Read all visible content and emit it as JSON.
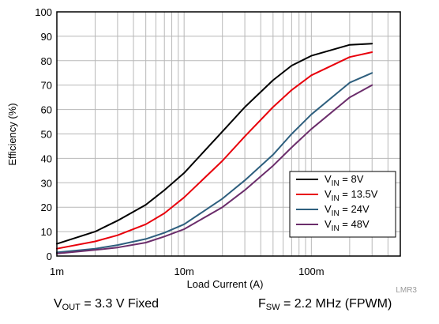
{
  "chart_data": {
    "type": "line",
    "xlabel": "Load Current (A)",
    "ylabel": "Efficiency (%)",
    "x_scale": "log",
    "xlim": [
      0.001,
      0.5
    ],
    "ylim": [
      0,
      100
    ],
    "grid": true,
    "legend_position": "bottom-right",
    "x_ticks": [
      {
        "value": 0.001,
        "label": "1m"
      },
      {
        "value": 0.01,
        "label": "10m"
      },
      {
        "value": 0.1,
        "label": "100m"
      }
    ],
    "y_ticks": [
      0,
      10,
      20,
      30,
      40,
      50,
      60,
      70,
      80,
      90,
      100
    ],
    "series": [
      {
        "name_prefix": "V",
        "name_sub": "IN",
        "name_suffix": " = 8V",
        "color": "#000000",
        "x": [
          0.001,
          0.002,
          0.003,
          0.005,
          0.007,
          0.01,
          0.02,
          0.03,
          0.05,
          0.07,
          0.1,
          0.2,
          0.3
        ],
        "y": [
          5,
          10,
          14.5,
          21,
          27,
          34,
          51,
          61,
          72,
          78,
          82,
          86.5,
          87
        ]
      },
      {
        "name_prefix": "V",
        "name_sub": "IN",
        "name_suffix": " = 13.5V",
        "color": "#e8000b",
        "x": [
          0.001,
          0.002,
          0.003,
          0.005,
          0.007,
          0.01,
          0.02,
          0.03,
          0.05,
          0.07,
          0.1,
          0.2,
          0.3
        ],
        "y": [
          3,
          6,
          8.5,
          13,
          17.5,
          24,
          39,
          49,
          61,
          68,
          74,
          81.5,
          83.5
        ]
      },
      {
        "name_prefix": "V",
        "name_sub": "IN",
        "name_suffix": " = 24V",
        "color": "#2e5f7e",
        "x": [
          0.001,
          0.002,
          0.003,
          0.005,
          0.007,
          0.01,
          0.02,
          0.03,
          0.05,
          0.07,
          0.1,
          0.2,
          0.3
        ],
        "y": [
          1.5,
          3,
          4.5,
          7,
          9.5,
          13,
          23.5,
          31,
          41.5,
          50,
          58,
          71,
          75
        ]
      },
      {
        "name_prefix": "V",
        "name_sub": "IN",
        "name_suffix": " = 48V",
        "color": "#6b2d6b",
        "x": [
          0.001,
          0.002,
          0.003,
          0.005,
          0.007,
          0.01,
          0.02,
          0.03,
          0.05,
          0.07,
          0.1,
          0.2,
          0.3
        ],
        "y": [
          1,
          2.5,
          3.5,
          5.5,
          8,
          11,
          20,
          27,
          37,
          44.5,
          52,
          65,
          70
        ]
      }
    ],
    "watermark": "LMR3"
  },
  "captions": {
    "vout_prefix": "V",
    "vout_sub": "OUT",
    "vout_suffix": " = 3.3 V Fixed",
    "fsw_prefix": "F",
    "fsw_sub": "SW",
    "fsw_suffix": " = 2.2 MHz (FPWM)"
  }
}
